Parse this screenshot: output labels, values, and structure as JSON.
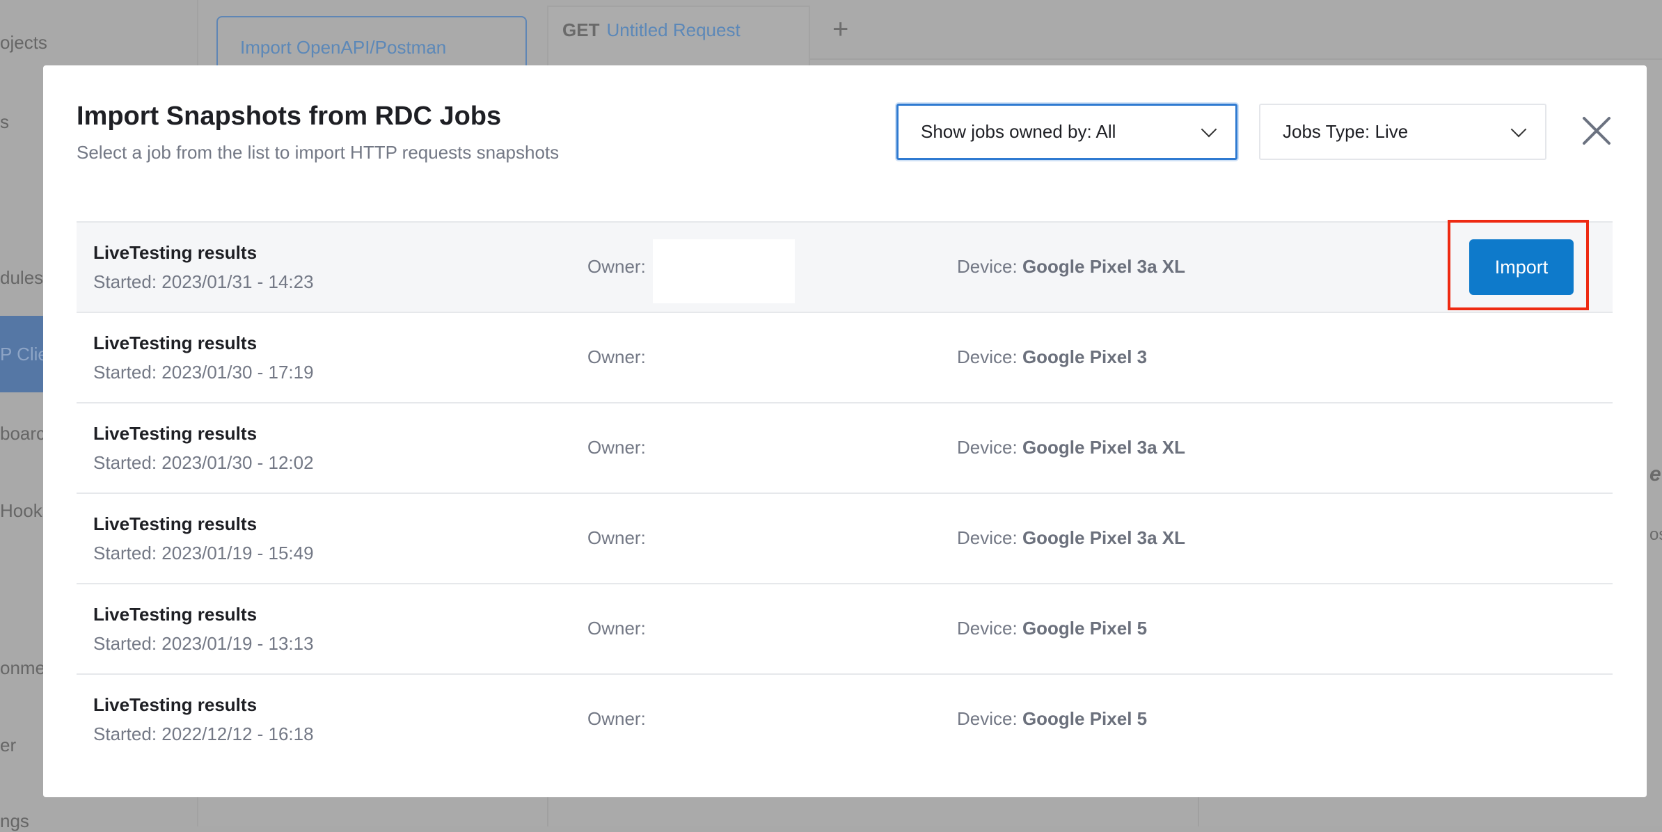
{
  "background": {
    "sidebar_items": [
      "ojects",
      "s",
      "dules",
      "P Clie",
      "boarc",
      "Hooks",
      "onme",
      "er",
      "ngs"
    ],
    "tabs": [
      {
        "label": "Import OpenAPI/Postman"
      },
      {
        "method": "GET",
        "label": "Untitled Request"
      }
    ],
    "add_tab": "+",
    "right_text_1": "e",
    "right_text_2": "ost"
  },
  "modal": {
    "title": "Import Snapshots from RDC Jobs",
    "subtitle": "Select a job from the list to import HTTP requests snapshots",
    "owner_filter": "Show jobs owned by: All",
    "type_filter": "Jobs Type: Live",
    "owner_label": "Owner:",
    "device_label": "Device:",
    "import_label": "Import",
    "jobs": [
      {
        "title": "LiveTesting results",
        "started": "Started: 2023/01/31 - 14:23",
        "device": "Google Pixel 3a XL"
      },
      {
        "title": "LiveTesting results",
        "started": "Started: 2023/01/30 - 17:19",
        "device": "Google Pixel 3"
      },
      {
        "title": "LiveTesting results",
        "started": "Started: 2023/01/30 - 12:02",
        "device": "Google Pixel 3a XL"
      },
      {
        "title": "LiveTesting results",
        "started": "Started: 2023/01/19 - 15:49",
        "device": "Google Pixel 3a XL"
      },
      {
        "title": "LiveTesting results",
        "started": "Started: 2023/01/19 - 13:13",
        "device": "Google Pixel 5"
      },
      {
        "title": "LiveTesting results",
        "started": "Started: 2022/12/12 - 16:18",
        "device": "Google Pixel 5"
      }
    ]
  },
  "colors": {
    "accent": "#0e7acb",
    "highlight": "#ee2a12"
  }
}
